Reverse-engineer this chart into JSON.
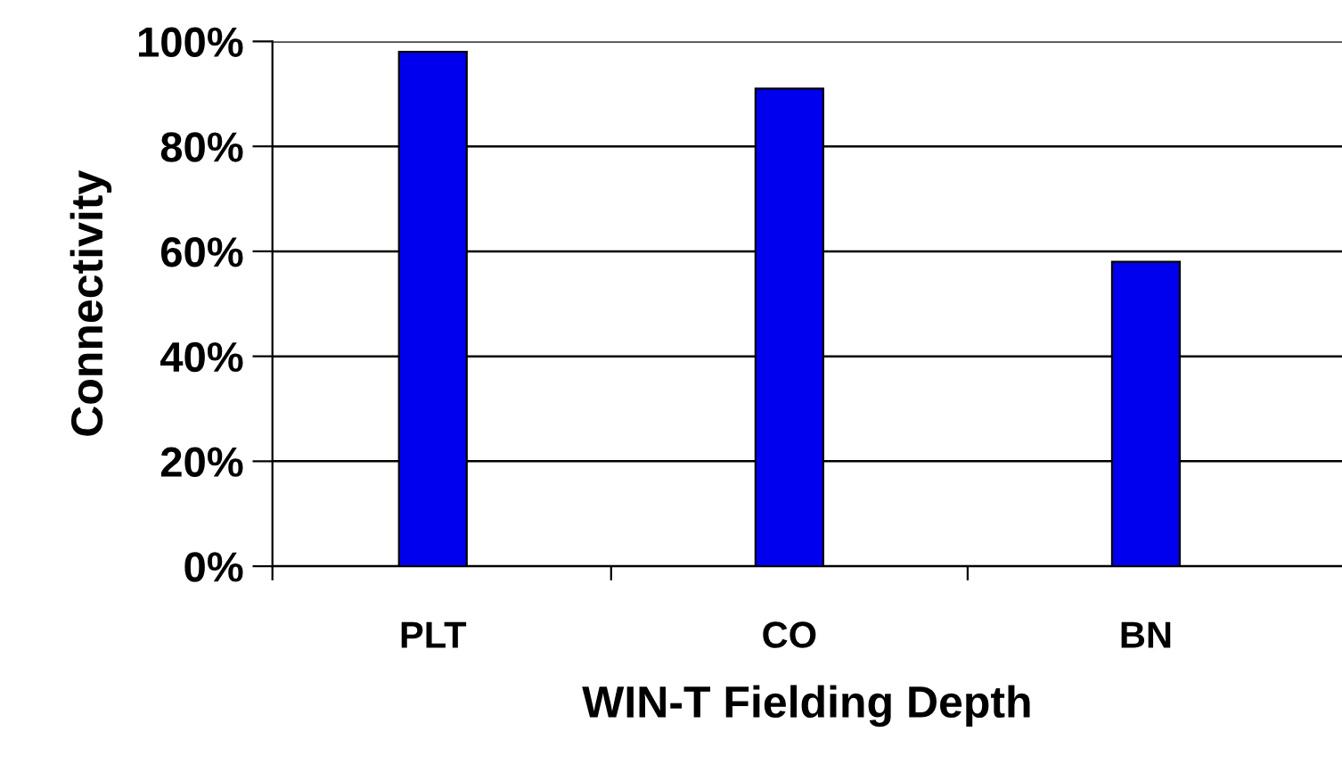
{
  "chart_data": {
    "type": "bar",
    "xlabel": "WIN-T Fielding Depth",
    "ylabel": "Connectivity",
    "categories": [
      "PLT",
      "CO",
      "BN"
    ],
    "values": [
      98,
      91,
      58
    ],
    "color": "#0000ee",
    "ylim": [
      0,
      100
    ],
    "yticks": [
      {
        "value": 0,
        "label": "0%"
      },
      {
        "value": 20,
        "label": "20%"
      },
      {
        "value": 40,
        "label": "40%"
      },
      {
        "value": 60,
        "label": "60%"
      },
      {
        "value": 80,
        "label": "80%"
      },
      {
        "value": 100,
        "label": "100%"
      }
    ],
    "grid": "y",
    "legend": false
  }
}
